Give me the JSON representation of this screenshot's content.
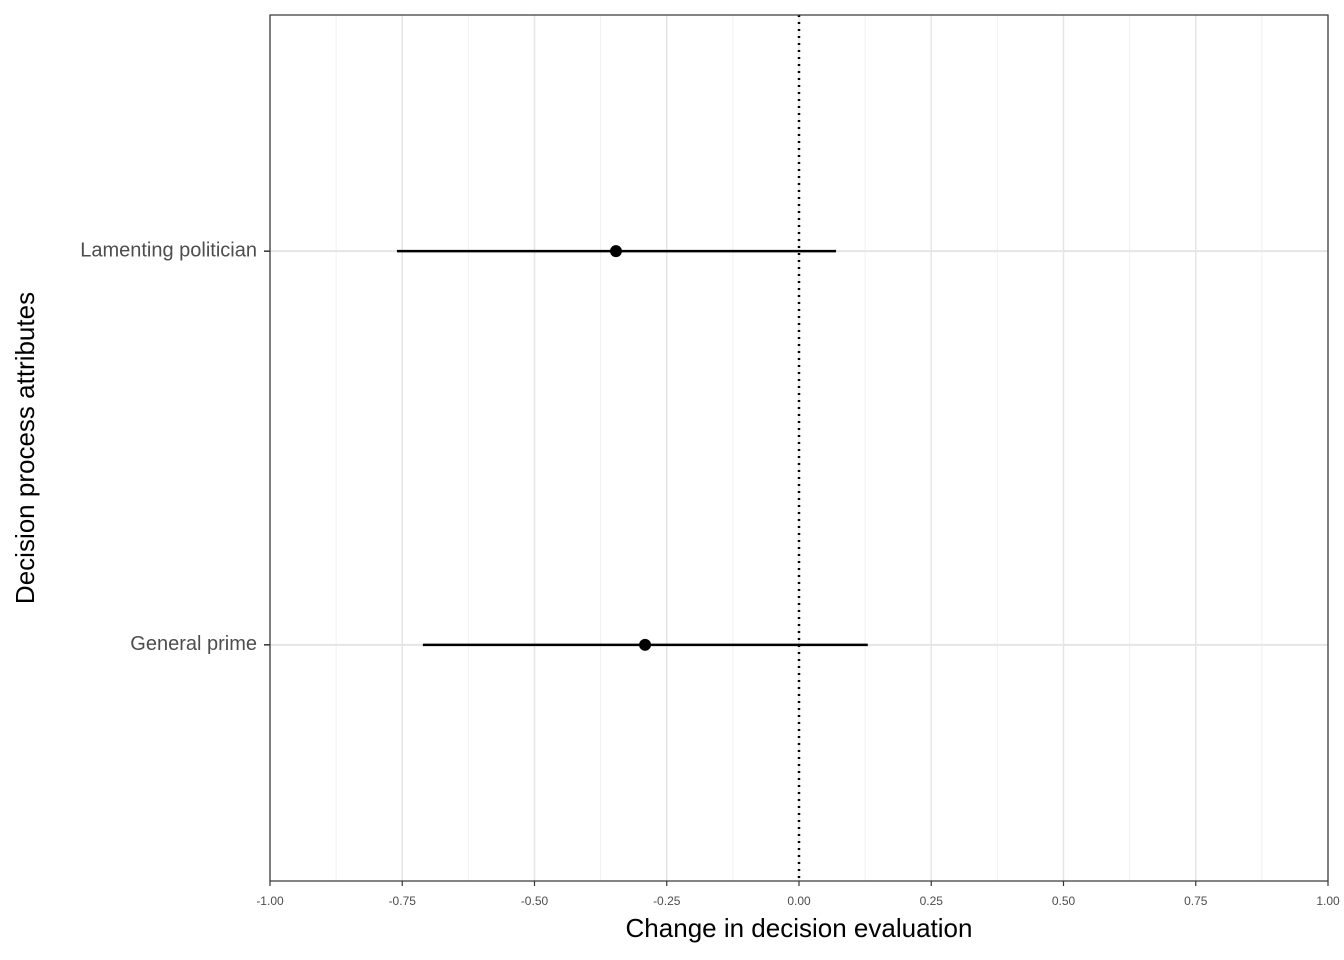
{
  "chart_data": {
    "type": "coefplot",
    "xlabel": "Change in decision evaluation",
    "ylabel": "Decision process attributes",
    "categories": [
      "General prime",
      "Lamenting politician"
    ],
    "values": [
      -0.291,
      -0.346
    ],
    "lower": [
      -0.711,
      -0.76
    ],
    "upper": [
      0.13,
      0.07
    ],
    "color": "#000000",
    "refline": 0,
    "xlim": [
      -1,
      1
    ],
    "xticks": [
      {
        "value": -1,
        "label": "-1.00"
      },
      {
        "value": -0.75,
        "label": "-0.75"
      },
      {
        "value": -0.5,
        "label": "-0.50"
      },
      {
        "value": -0.25,
        "label": "-0.25"
      },
      {
        "value": 0,
        "label": "0.00"
      },
      {
        "value": 0.25,
        "label": "0.25"
      },
      {
        "value": 0.5,
        "label": "0.50"
      },
      {
        "value": 0.75,
        "label": "0.75"
      },
      {
        "value": 1,
        "label": "1.00"
      }
    ],
    "grid": true
  }
}
